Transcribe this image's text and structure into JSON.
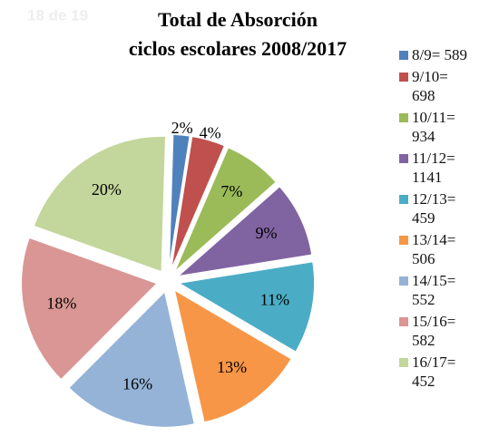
{
  "page_indicator": "18 de 19",
  "chart_data": {
    "type": "pie",
    "title": "Total de Absorción",
    "subtitle": "ciclos escolares 2008/2017",
    "categories": [
      "8/9= 589",
      "9/10= 698",
      "10/11= 934",
      "11/12= 1141",
      "12/13= 459",
      "13/14= 506",
      "14/15= 552",
      "15/16= 582",
      "16/17= 452"
    ],
    "values": [
      2,
      4,
      7,
      9,
      11,
      13,
      16,
      18,
      20
    ],
    "value_labels": [
      "2%",
      "4%",
      "7%",
      "9%",
      "11%",
      "13%",
      "16%",
      "18%",
      "20%"
    ],
    "colors": [
      "#4f81bd",
      "#c0504d",
      "#9bbb59",
      "#8064a2",
      "#4bacc6",
      "#f79646",
      "#95b3d7",
      "#d99694",
      "#c3d69b"
    ],
    "legend": "right"
  }
}
